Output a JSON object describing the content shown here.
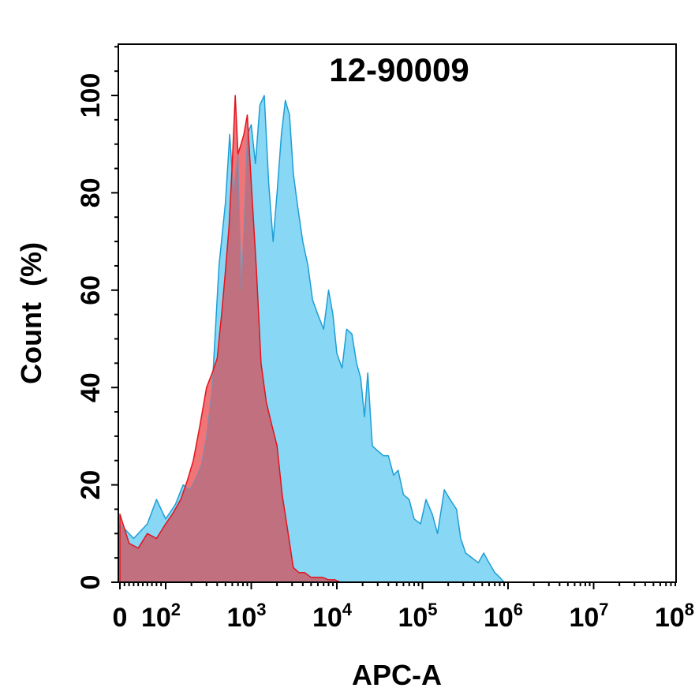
{
  "chart_data": {
    "type": "area",
    "title": "12-90009",
    "xlabel": "APC-A",
    "ylabel": "Count  (%)",
    "x_scale": "log",
    "x_tick_labels": [
      {
        "base": "0",
        "exp": ""
      },
      {
        "base": "10",
        "exp": "2"
      },
      {
        "base": "10",
        "exp": "3"
      },
      {
        "base": "10",
        "exp": "4"
      },
      {
        "base": "10",
        "exp": "5"
      },
      {
        "base": "10",
        "exp": "6"
      },
      {
        "base": "10",
        "exp": "7"
      },
      {
        "base": "10",
        "exp": "8"
      }
    ],
    "y_ticks": [
      0,
      20,
      40,
      60,
      80,
      100
    ],
    "ylim": [
      0,
      110
    ],
    "series": [
      {
        "fill": "#87d7f5",
        "stroke": "#1e9ed4",
        "x": [
          0,
          30,
          60,
          80,
          100,
          130,
          160,
          190,
          220,
          260,
          300,
          350,
          420,
          500,
          560,
          620,
          700,
          760,
          820,
          900,
          1000,
          1120,
          1260,
          1420,
          1600,
          1800,
          2000,
          2250,
          2500,
          2800,
          3100,
          3500,
          4000,
          4600,
          5200,
          6000,
          7000,
          8000,
          9000,
          10000,
          11500,
          13000,
          15000,
          17000,
          19000,
          21000,
          23000,
          26000,
          30000,
          35000,
          40000,
          46000,
          52000,
          60000,
          70000,
          80000,
          95000,
          110000,
          130000,
          150000,
          180000,
          210000,
          250000,
          280000,
          320000,
          380000,
          450000,
          520000,
          600000,
          700000,
          800000,
          900000,
          1000000
        ],
        "y": [
          12,
          9,
          12,
          17,
          13,
          16,
          20,
          19,
          21,
          24,
          30,
          40,
          65,
          78,
          92,
          80,
          88,
          60,
          72,
          92,
          94,
          86,
          98,
          100,
          82,
          70,
          80,
          92,
          99,
          96,
          84,
          77,
          70,
          65,
          58,
          55,
          52,
          60,
          55,
          47,
          44,
          52,
          51,
          45,
          42,
          34,
          43,
          28,
          27,
          26,
          26,
          22,
          23,
          18,
          17,
          13,
          12,
          17,
          14,
          10,
          19,
          17,
          15,
          9,
          6,
          5,
          4,
          6,
          4,
          2,
          1,
          0,
          0
        ]
      },
      {
        "fill": "#f07478",
        "stroke": "#e3141c",
        "x": [
          0,
          20,
          40,
          60,
          80,
          100,
          120,
          150,
          180,
          210,
          250,
          300,
          350,
          400,
          450,
          500,
          550,
          600,
          650,
          700,
          760,
          820,
          900,
          1000,
          1150,
          1300,
          1500,
          1700,
          2000,
          2300,
          2700,
          3100,
          3600,
          4200,
          5000,
          5800,
          6800,
          8000,
          9500,
          11000,
          13000
        ],
        "y": [
          14,
          8,
          7,
          10,
          9,
          12,
          14,
          17,
          21,
          25,
          32,
          40,
          43,
          46,
          55,
          64,
          73,
          86,
          100,
          88,
          90,
          92,
          96,
          82,
          64,
          45,
          37,
          33,
          28,
          18,
          10,
          3,
          2,
          2,
          1,
          1,
          1,
          0.5,
          0.5,
          0,
          0
        ]
      }
    ],
    "overlap_fill": "#c0707f"
  }
}
